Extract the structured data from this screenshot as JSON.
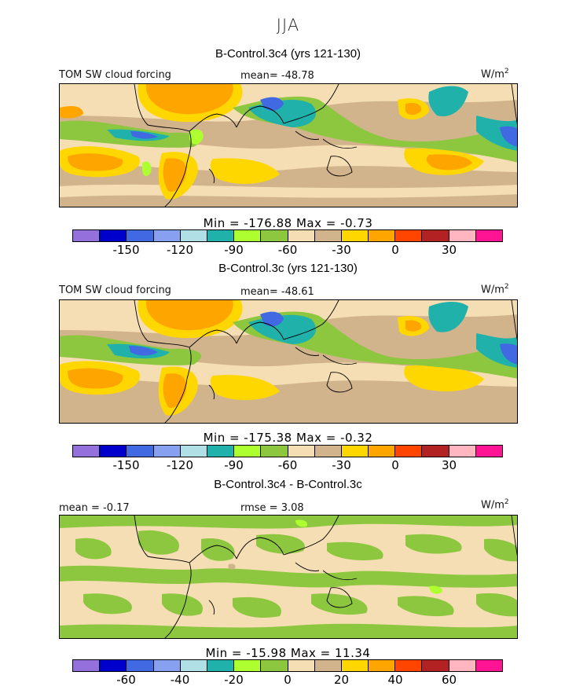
{
  "season_title": "JJA",
  "panels": [
    {
      "title": "B-Control.3c4 (yrs 121-130)",
      "left_label": "TOM SW cloud forcing",
      "center_label": "mean= -48.78",
      "unit_base": "W/m",
      "unit_exp": "2",
      "minmax": "Min = -176.88 Max = -0.73",
      "tick_labels": [
        "-150",
        "-120",
        "-90",
        "-60",
        "-30",
        "0",
        "30"
      ]
    },
    {
      "title": "B-Control.3c (yrs 121-130)",
      "left_label": "TOM SW cloud forcing",
      "center_label": "mean= -48.61",
      "unit_base": "W/m",
      "unit_exp": "2",
      "minmax": "Min = -175.38 Max = -0.32",
      "tick_labels": [
        "-150",
        "-120",
        "-90",
        "-60",
        "-30",
        "0",
        "30"
      ]
    },
    {
      "title": "B-Control.3c4 - B-Control.3c",
      "left_label": "mean = -0.17",
      "center_label": "rmse = 3.08",
      "unit_base": "W/m",
      "unit_exp": "2",
      "minmax": "Min = -15.98 Max = 11.34",
      "tick_labels": [
        "-60",
        "-40",
        "-20",
        "0",
        "20",
        "40",
        "60"
      ]
    }
  ],
  "colorbar_colors": [
    "#9370db",
    "#0000cd",
    "#4169e1",
    "#87a0f0",
    "#b0e0e6",
    "#20b2aa",
    "#adff2f",
    "#8dc63f",
    "#f5deb3",
    "#d2b48c",
    "#ffd700",
    "#ffa500",
    "#ff4500",
    "#b22222",
    "#ffb6c1",
    "#ff1493"
  ],
  "map_colors": {
    "ocean_base": "#d2b48c",
    "light_tan": "#f5deb3",
    "yellow": "#ffd700",
    "orange": "#ffa500",
    "green": "#8dc63f",
    "lime": "#adff2f",
    "teal": "#20b2aa",
    "cyan": "#b0e0e6",
    "blue": "#4169e1",
    "dark_blue": "#0000cd",
    "coast": "#000000"
  }
}
